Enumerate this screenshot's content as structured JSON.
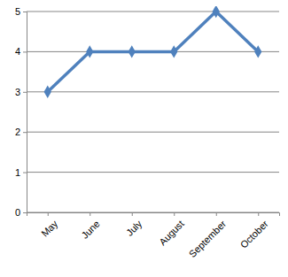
{
  "chart_data": {
    "type": "line",
    "categories": [
      "May",
      "June",
      "July",
      "August",
      "September",
      "October"
    ],
    "values": [
      3,
      4,
      4,
      4,
      5,
      4
    ],
    "color": "#4f81bd",
    "marker": "diamond",
    "ylim": [
      0,
      5
    ],
    "yticks": [
      0,
      1,
      2,
      3,
      4,
      5
    ],
    "grid": true
  }
}
